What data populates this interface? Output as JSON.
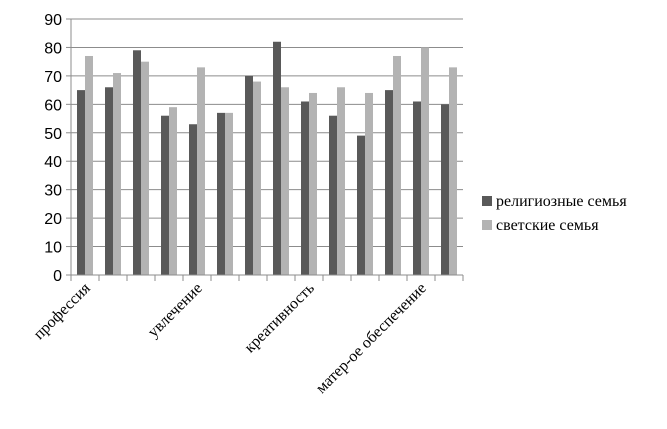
{
  "chart_data": {
    "type": "bar",
    "title": "",
    "xlabel": "",
    "ylabel": "",
    "ylim": [
      0,
      90
    ],
    "yticks": [
      0,
      10,
      20,
      30,
      40,
      50,
      60,
      70,
      80,
      90
    ],
    "grid": true,
    "legend_position": "right",
    "category_labels_shown": [
      {
        "index": 0,
        "label": "профессия"
      },
      {
        "index": 4,
        "label": "увлечение"
      },
      {
        "index": 8,
        "label": "креативность"
      },
      {
        "index": 12,
        "label": "матер-ое обеспечение"
      }
    ],
    "series": [
      {
        "name": "религиозные семья",
        "color": "#595959",
        "values": [
          65,
          66,
          79,
          56,
          53,
          57,
          70,
          82,
          61,
          56,
          49,
          65,
          61,
          60
        ]
      },
      {
        "name": "светские семья",
        "color": "#b3b3b3",
        "values": [
          77,
          71,
          75,
          59,
          73,
          57,
          68,
          66,
          64,
          66,
          64,
          77,
          80,
          73
        ]
      }
    ]
  }
}
